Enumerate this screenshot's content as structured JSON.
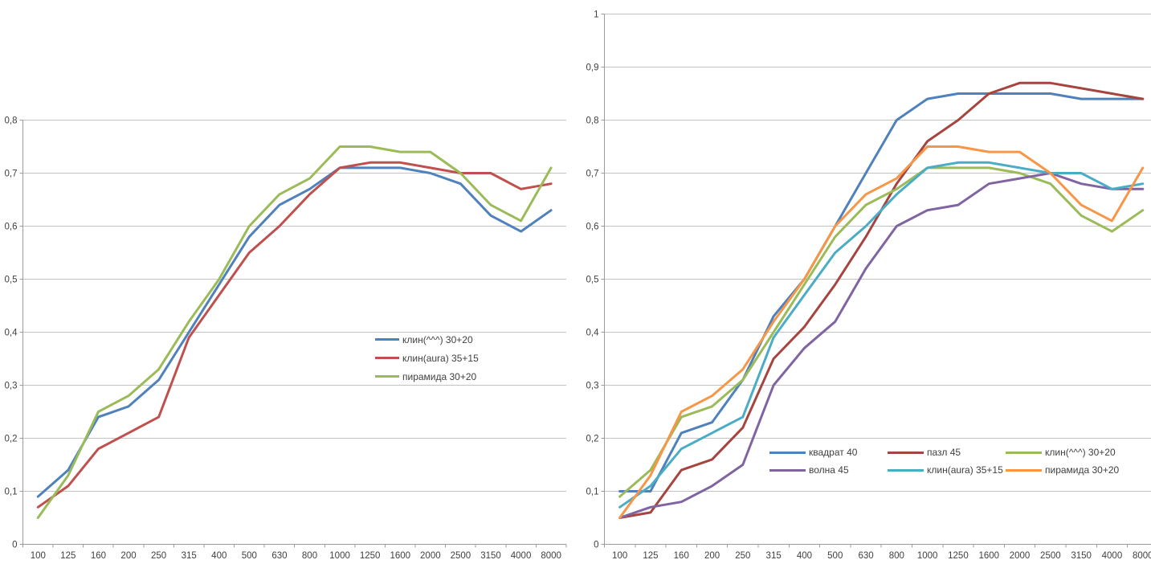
{
  "page": {
    "background": "#ffffff",
    "text_color": "#3f3f3f",
    "gridline_color": "#c3c3c3",
    "axis_color": "#9b9b9b"
  },
  "chart_data": [
    {
      "id": "left-chart",
      "type": "line",
      "title": "",
      "xlabel": "",
      "ylabel": "",
      "grid": true,
      "legend_position": "overlay center-right, vertical list",
      "ylim": [
        0,
        0.8
      ],
      "y_tick_labels": [
        "0",
        "0,1",
        "0,2",
        "0,3",
        "0,4",
        "0,5",
        "0,6",
        "0,7",
        "0,8"
      ],
      "categories": [
        "100",
        "125",
        "160",
        "200",
        "250",
        "315",
        "400",
        "500",
        "630",
        "800",
        "1000",
        "1250",
        "1600",
        "2000",
        "2500",
        "3150",
        "4000",
        "8000"
      ],
      "series": [
        {
          "name": "клин(^^^) 30+20",
          "color": "#4F81BD",
          "values": [
            0.09,
            0.14,
            0.24,
            0.26,
            0.31,
            0.4,
            0.49,
            0.58,
            0.64,
            0.67,
            0.71,
            0.71,
            0.71,
            0.7,
            0.68,
            0.62,
            0.59,
            0.63
          ]
        },
        {
          "name": "клин(aura) 35+15",
          "color": "#C0504D",
          "values": [
            0.07,
            0.11,
            0.18,
            0.21,
            0.24,
            0.39,
            0.47,
            0.55,
            0.6,
            0.66,
            0.71,
            0.72,
            0.72,
            0.71,
            0.7,
            0.7,
            0.67,
            0.68
          ]
        },
        {
          "name": "пирамида 30+20",
          "color": "#9BBB59",
          "values": [
            0.05,
            0.13,
            0.25,
            0.28,
            0.33,
            0.42,
            0.5,
            0.6,
            0.66,
            0.69,
            0.75,
            0.75,
            0.74,
            0.74,
            0.7,
            0.64,
            0.61,
            0.71
          ]
        }
      ]
    },
    {
      "id": "right-chart",
      "type": "line",
      "title": "",
      "xlabel": "",
      "ylabel": "",
      "grid": true,
      "legend_position": "overlay bottom, 2 rows x 3 columns",
      "ylim": [
        0,
        1
      ],
      "y_tick_labels": [
        "0",
        "0,1",
        "0,2",
        "0,3",
        "0,4",
        "0,5",
        "0,6",
        "0,7",
        "0,8",
        "0,9",
        "1"
      ],
      "categories": [
        "100",
        "125",
        "160",
        "200",
        "250",
        "315",
        "400",
        "500",
        "630",
        "800",
        "1000",
        "1250",
        "1600",
        "2000",
        "2500",
        "3150",
        "4000",
        "8000"
      ],
      "series": [
        {
          "name": "квадрат 40",
          "color": "#4F81BD",
          "values": [
            0.1,
            0.1,
            0.21,
            0.23,
            0.31,
            0.43,
            0.5,
            0.6,
            0.7,
            0.8,
            0.84,
            0.85,
            0.85,
            0.85,
            0.85,
            0.84,
            0.84,
            0.84
          ]
        },
        {
          "name": "пазл 45",
          "color": "#A6453F",
          "values": [
            0.05,
            0.06,
            0.14,
            0.16,
            0.22,
            0.35,
            0.41,
            0.49,
            0.58,
            0.68,
            0.76,
            0.8,
            0.85,
            0.87,
            0.87,
            0.86,
            0.85,
            0.84
          ]
        },
        {
          "name": "клин(^^^) 30+20",
          "color": "#9BBB59",
          "values": [
            0.09,
            0.14,
            0.24,
            0.26,
            0.31,
            0.4,
            0.49,
            0.58,
            0.64,
            0.67,
            0.71,
            0.71,
            0.71,
            0.7,
            0.68,
            0.62,
            0.59,
            0.63
          ]
        },
        {
          "name": "волна 45",
          "color": "#8064A2",
          "values": [
            0.05,
            0.07,
            0.08,
            0.11,
            0.15,
            0.3,
            0.37,
            0.42,
            0.52,
            0.6,
            0.63,
            0.64,
            0.68,
            0.69,
            0.7,
            0.68,
            0.67,
            0.67
          ]
        },
        {
          "name": "клин(aura) 35+15",
          "color": "#4BACC6",
          "values": [
            0.07,
            0.11,
            0.18,
            0.21,
            0.24,
            0.39,
            0.47,
            0.55,
            0.6,
            0.66,
            0.71,
            0.72,
            0.72,
            0.71,
            0.7,
            0.7,
            0.67,
            0.68
          ]
        },
        {
          "name": "пирамида 30+20",
          "color": "#F79646",
          "values": [
            0.05,
            0.13,
            0.25,
            0.28,
            0.33,
            0.42,
            0.5,
            0.6,
            0.66,
            0.69,
            0.75,
            0.75,
            0.74,
            0.74,
            0.7,
            0.64,
            0.61,
            0.71
          ]
        }
      ],
      "legend_rows": [
        [
          "квадрат 40",
          "пазл 45",
          "клин(^^^) 30+20"
        ],
        [
          "волна 45",
          "клин(aura) 35+15",
          "пирамида 30+20"
        ]
      ]
    }
  ]
}
